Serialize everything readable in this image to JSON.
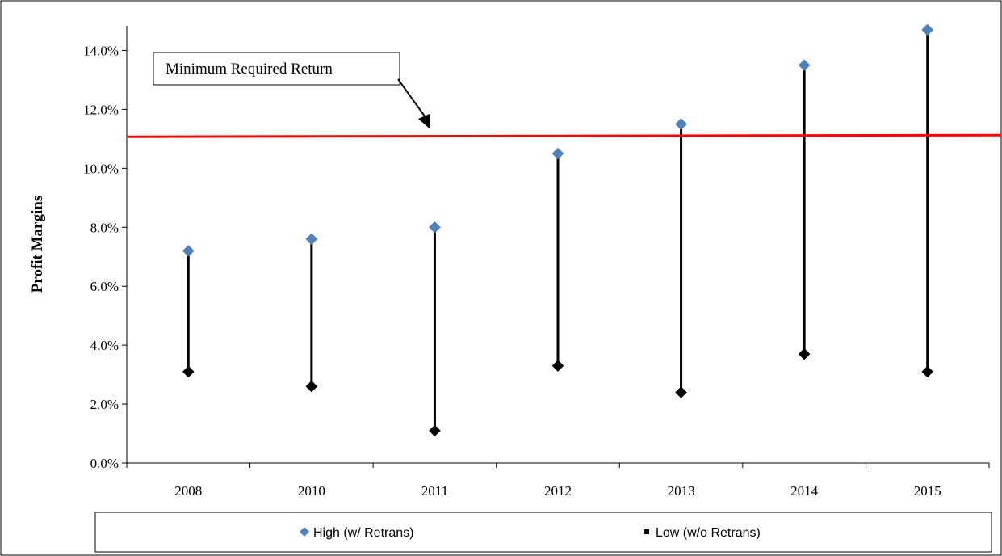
{
  "chart_data": {
    "type": "scatter",
    "subtype": "high-low",
    "title": "",
    "xlabel": "",
    "ylabel": "Profit Margins",
    "categories": [
      "2008",
      "2010",
      "2011",
      "2012",
      "2013",
      "2014",
      "2015"
    ],
    "series": [
      {
        "name": "High (w/ Retrans)",
        "marker": "diamond",
        "color": "#4F81BD",
        "values": [
          7.2,
          7.6,
          8.0,
          10.5,
          11.5,
          13.5,
          14.7
        ]
      },
      {
        "name": "Low (w/o Retrans)",
        "marker": "diamond",
        "color": "#000000",
        "values": [
          3.1,
          2.6,
          1.1,
          3.3,
          2.4,
          3.7,
          3.1
        ]
      }
    ],
    "reference_line": {
      "value": 11.1,
      "color": "#FF0000",
      "label": "Minimum Required Return"
    },
    "ylim": [
      0,
      15
    ],
    "yticks": [
      0,
      2,
      4,
      6,
      8,
      10,
      12,
      14
    ],
    "ytick_labels": [
      "0.0%",
      "2.0%",
      "4.0%",
      "6.0%",
      "8.0%",
      "10.0%",
      "12.0%",
      "14.0%"
    ],
    "grid": false,
    "legend_position": "bottom"
  }
}
